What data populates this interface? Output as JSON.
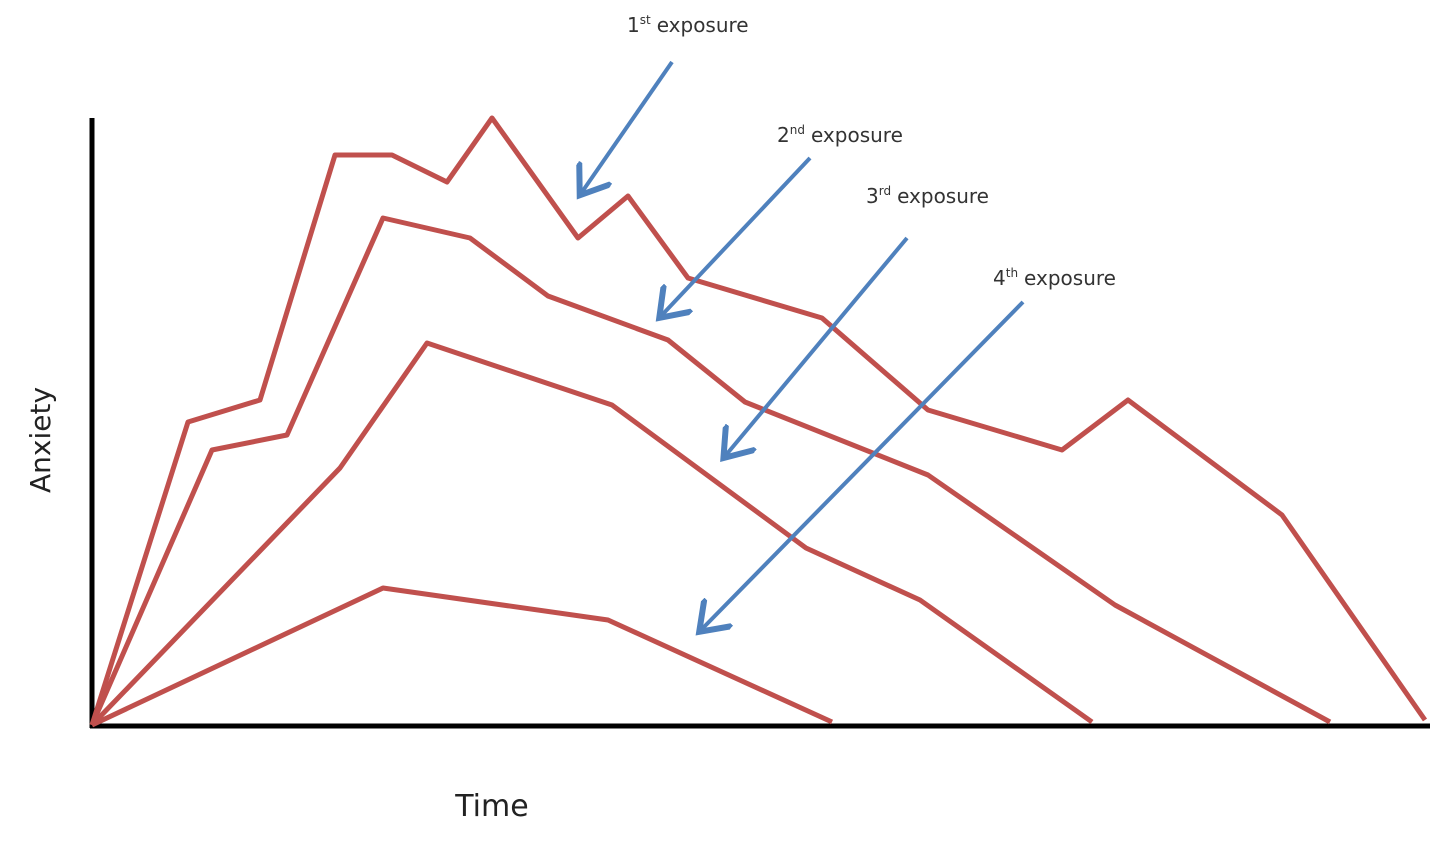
{
  "axes": {
    "x_label": "Time",
    "y_label": "Anxiety"
  },
  "exposures": [
    {
      "number": "1",
      "suffix": "st",
      "word": "exposure"
    },
    {
      "number": "2",
      "suffix": "nd",
      "word": "exposure"
    },
    {
      "number": "3",
      "suffix": "rd",
      "word": "exposure"
    },
    {
      "number": "4",
      "suffix": "th",
      "word": "exposure"
    }
  ]
}
